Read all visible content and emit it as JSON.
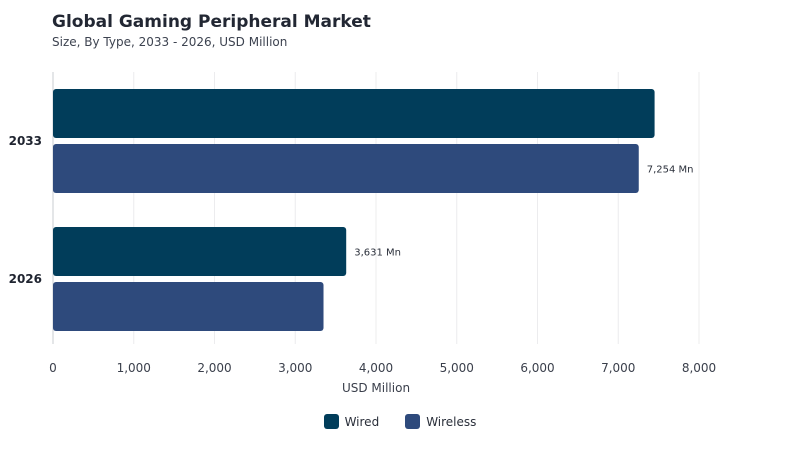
{
  "title": "Global Gaming Peripheral Market",
  "subtitle": "Size, By Type, 2033 - 2026, USD Million",
  "chart_data": {
    "type": "bar",
    "orientation": "horizontal",
    "categories": [
      "2033",
      "2026"
    ],
    "series": [
      {
        "name": "Wired",
        "color": "#013d5a",
        "values": [
          7450,
          3631
        ]
      },
      {
        "name": "Wireless",
        "color": "#2e4a7c",
        "values": [
          7254,
          3350
        ]
      }
    ],
    "data_labels": [
      {
        "category": "2033",
        "series": "Wireless",
        "text": "7,254 Mn"
      },
      {
        "category": "2026",
        "series": "Wired",
        "text": "3,631 Mn"
      }
    ],
    "xlabel": "USD Million",
    "ylabel": "",
    "xlim": [
      0,
      8000
    ],
    "x_ticks": [
      0,
      1000,
      2000,
      3000,
      4000,
      5000,
      6000,
      7000,
      8000
    ],
    "x_tick_labels": [
      "0",
      "1,000",
      "2,000",
      "3,000",
      "4,000",
      "5,000",
      "6,000",
      "7,000",
      "8,000"
    ],
    "grid": true,
    "legend_position": "bottom-center"
  }
}
